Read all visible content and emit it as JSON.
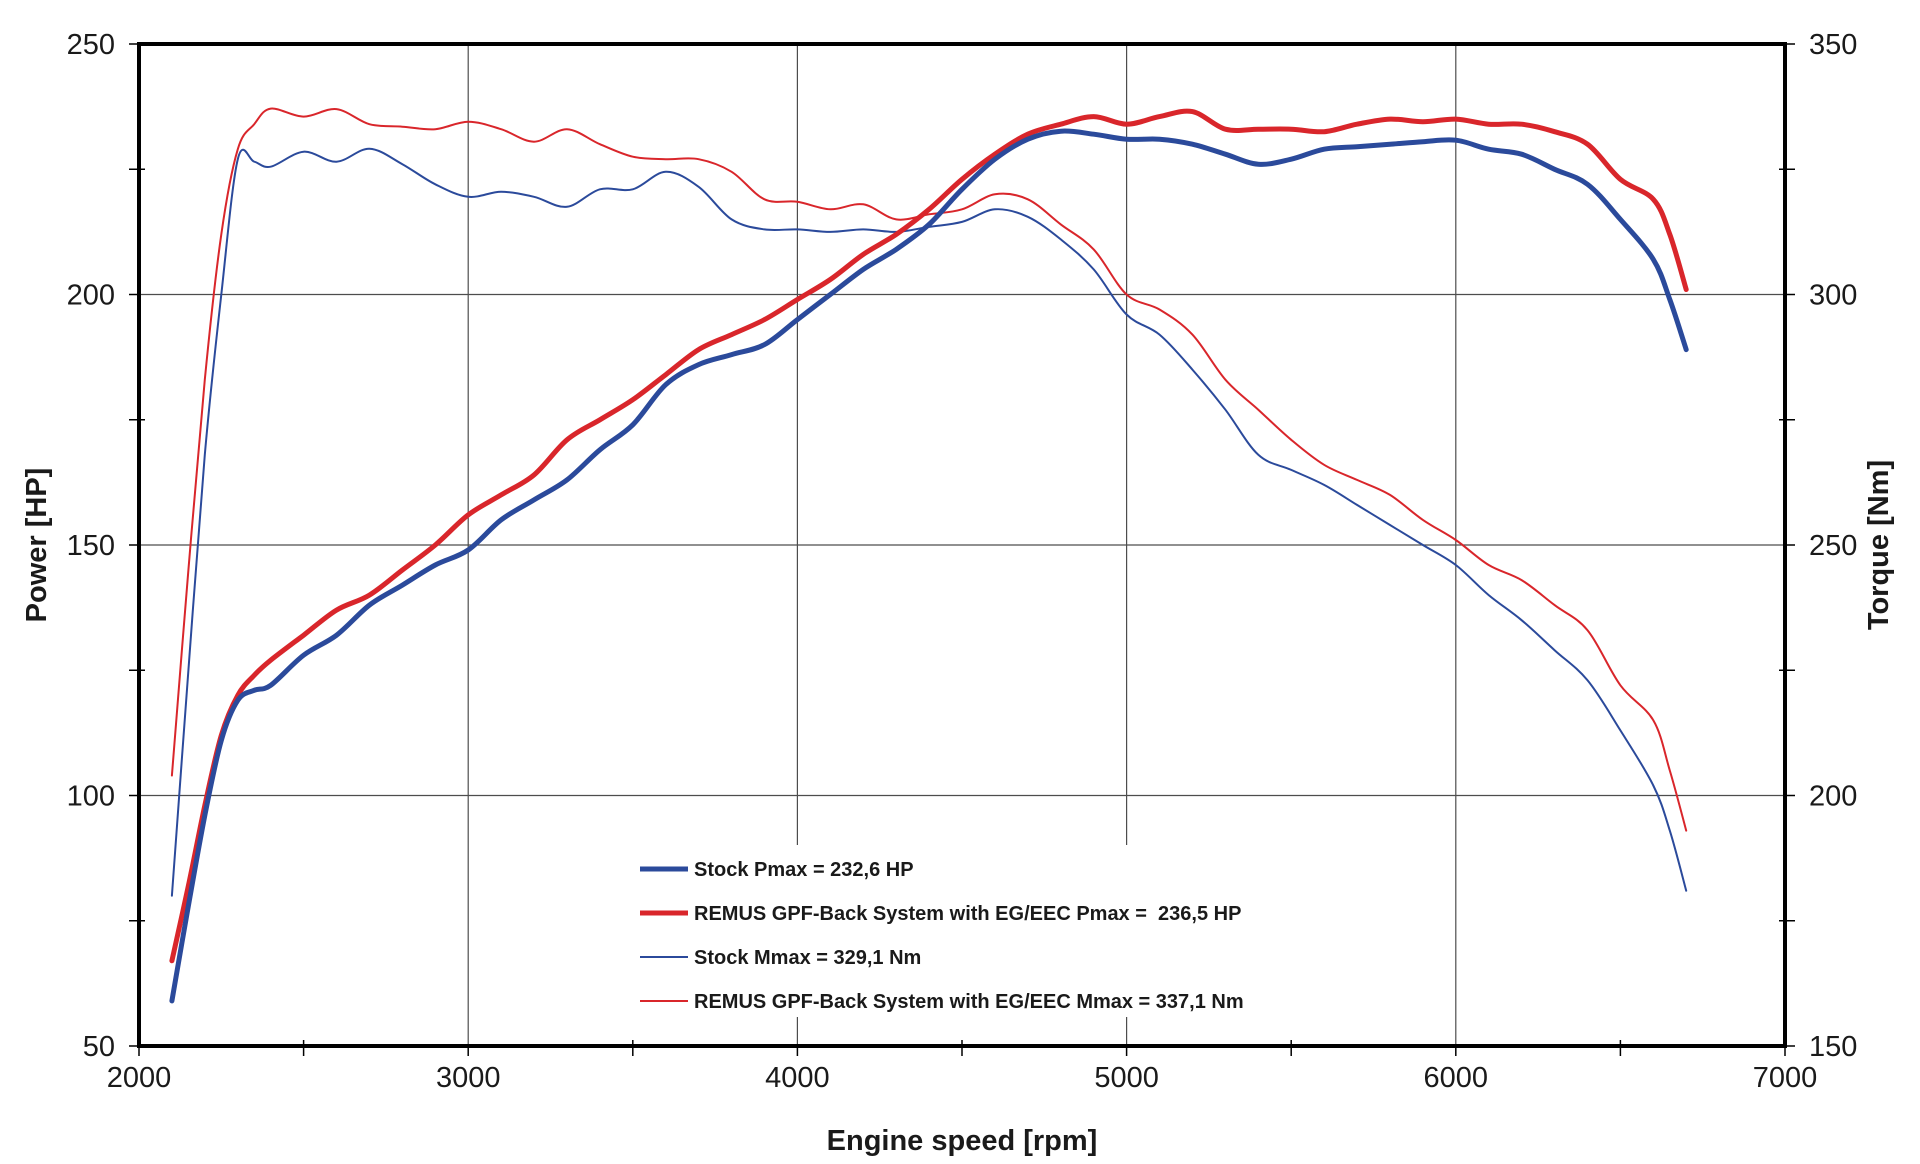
{
  "chart_data": {
    "type": "line",
    "xlabel": "Engine speed [rpm]",
    "ylabel_left": "Power [HP]",
    "ylabel_right": "Torque [Nm]",
    "xlim": [
      2000,
      7000
    ],
    "ylim_left": [
      50,
      250
    ],
    "ylim_right": [
      150,
      350
    ],
    "x_ticks": [
      "2000",
      "3000",
      "4000",
      "5000",
      "6000",
      "7000"
    ],
    "y_left_ticks": [
      "50",
      "100",
      "150",
      "200",
      "250"
    ],
    "y_right_ticks": [
      "150",
      "200",
      "250",
      "300",
      "350"
    ],
    "grid": true,
    "legend_position": "bottom-center",
    "series": [
      {
        "name": "Stock Pmax = 232,6 HP",
        "axis": "left",
        "color": "#2b4a9b",
        "weight": "thick",
        "x": [
          2100,
          2150,
          2200,
          2250,
          2300,
          2350,
          2400,
          2500,
          2600,
          2700,
          2800,
          2900,
          3000,
          3100,
          3200,
          3300,
          3400,
          3500,
          3600,
          3700,
          3800,
          3900,
          4000,
          4100,
          4200,
          4300,
          4400,
          4500,
          4600,
          4700,
          4800,
          4900,
          5000,
          5100,
          5200,
          5300,
          5400,
          5500,
          5600,
          5700,
          5800,
          5900,
          6000,
          6100,
          6200,
          6300,
          6400,
          6500,
          6600,
          6650,
          6700
        ],
        "values": [
          59,
          78,
          96,
          111,
          119,
          121,
          122,
          128,
          132,
          138,
          142,
          146,
          149,
          155,
          159,
          163,
          169,
          174,
          182,
          186,
          188,
          190,
          195,
          200,
          205,
          209,
          214,
          221,
          227,
          231,
          232.6,
          232,
          231,
          231,
          230,
          228,
          226,
          227,
          229,
          229.5,
          230,
          230.5,
          230.8,
          229,
          228,
          225,
          222,
          215,
          207,
          199,
          189
        ]
      },
      {
        "name": "REMUS GPF-Back System with EG/EEC Pmax =  236,5 HP",
        "axis": "left",
        "color": "#d9262b",
        "weight": "thick",
        "x": [
          2100,
          2150,
          2200,
          2250,
          2300,
          2350,
          2400,
          2500,
          2600,
          2700,
          2800,
          2900,
          3000,
          3100,
          3200,
          3300,
          3400,
          3500,
          3600,
          3700,
          3800,
          3900,
          4000,
          4100,
          4200,
          4300,
          4400,
          4500,
          4600,
          4700,
          4800,
          4900,
          5000,
          5100,
          5200,
          5300,
          5400,
          5500,
          5600,
          5700,
          5800,
          5900,
          6000,
          6100,
          6200,
          6300,
          6400,
          6500,
          6600,
          6650,
          6700
        ],
        "values": [
          67,
          82,
          98,
          112,
          120,
          124,
          127,
          132,
          137,
          140,
          145,
          150,
          156,
          160,
          164,
          171,
          175,
          179,
          184,
          189,
          192,
          195,
          199,
          203,
          208,
          212,
          217,
          223,
          228,
          232,
          234,
          235.5,
          234,
          235.5,
          236.5,
          233,
          233,
          233,
          232.5,
          234,
          235,
          234.5,
          235,
          234,
          234,
          232.5,
          230,
          223,
          219,
          212,
          201
        ]
      },
      {
        "name": "Stock Mmax = 329,1 Nm",
        "axis": "right",
        "color": "#2b4a9b",
        "weight": "thin",
        "x": [
          2100,
          2150,
          2200,
          2250,
          2300,
          2350,
          2400,
          2500,
          2600,
          2700,
          2800,
          2900,
          3000,
          3100,
          3200,
          3300,
          3400,
          3500,
          3600,
          3700,
          3800,
          3900,
          4000,
          4100,
          4200,
          4300,
          4400,
          4500,
          4600,
          4700,
          4800,
          4900,
          5000,
          5100,
          5200,
          5300,
          5400,
          5500,
          5600,
          5700,
          5800,
          5900,
          6000,
          6100,
          6200,
          6300,
          6400,
          6500,
          6600,
          6650,
          6700
        ],
        "values": [
          180,
          225,
          268,
          300,
          327,
          326.5,
          325.5,
          328.5,
          326.5,
          329.1,
          326,
          322,
          319.5,
          320.5,
          319.5,
          317.5,
          321,
          321,
          324.5,
          321.5,
          315,
          313,
          313,
          312.5,
          313,
          312.5,
          313.5,
          314.5,
          317,
          315.5,
          311,
          305,
          296,
          292,
          285,
          277,
          268,
          265,
          262,
          258,
          254,
          250,
          246,
          240,
          235,
          229,
          223,
          213,
          202,
          193,
          181
        ]
      },
      {
        "name": "REMUS GPF-Back System with EG/EEC Mmax = 337,1 Nm",
        "axis": "right",
        "color": "#d9262b",
        "weight": "thin",
        "x": [
          2100,
          2150,
          2200,
          2250,
          2300,
          2350,
          2400,
          2500,
          2600,
          2700,
          2800,
          2900,
          3000,
          3100,
          3200,
          3300,
          3400,
          3500,
          3600,
          3700,
          3800,
          3900,
          4000,
          4100,
          4200,
          4300,
          4400,
          4500,
          4600,
          4700,
          4800,
          4900,
          5000,
          5100,
          5200,
          5300,
          5400,
          5500,
          5600,
          5700,
          5800,
          5900,
          6000,
          6100,
          6200,
          6300,
          6400,
          6500,
          6600,
          6650,
          6700
        ],
        "values": [
          204,
          245,
          283,
          312,
          329,
          334,
          337.1,
          335.5,
          337,
          334,
          333.5,
          333,
          334.5,
          333,
          330.5,
          333,
          330,
          327.5,
          327,
          327,
          324.5,
          319,
          318.5,
          317,
          318,
          315,
          316,
          317,
          320,
          319,
          314,
          309,
          300,
          297,
          292,
          283,
          277,
          271,
          266,
          263,
          260,
          255,
          251,
          246,
          243,
          238,
          233,
          222,
          215,
          205,
          193
        ]
      }
    ]
  }
}
